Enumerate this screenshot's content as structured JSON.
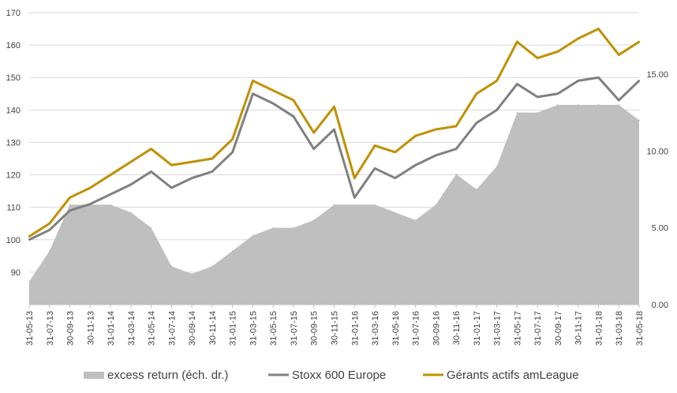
{
  "chart_data": {
    "type": "line",
    "title": "",
    "xlabel": "",
    "ylabel": "",
    "ylim": [
      80,
      170
    ],
    "y2lim": [
      0,
      19
    ],
    "yticks": [
      90,
      100,
      110,
      120,
      130,
      140,
      150,
      160,
      170
    ],
    "y2ticks": [
      "0.00",
      "5.00",
      "10.00",
      "15.00"
    ],
    "y2tick_values": [
      0,
      5,
      10,
      15
    ],
    "grid": true,
    "legend_position": "bottom",
    "x": [
      "31-05-13",
      "31-07-13",
      "30-09-13",
      "30-11-13",
      "31-01-14",
      "31-03-14",
      "31-05-14",
      "31-07-14",
      "30-09-14",
      "30-11-14",
      "31-01-15",
      "31-03-15",
      "31-05-15",
      "31-07-15",
      "30-09-15",
      "30-11-15",
      "31-01-16",
      "31-03-16",
      "31-05-16",
      "31-07-16",
      "30-09-16",
      "30-11-16",
      "31-01-17",
      "31-03-17",
      "31-05-17",
      "31-07-17",
      "30-09-17",
      "30-11-17",
      "31-01-18",
      "31-03-18",
      "31-05-18"
    ],
    "x_labels": [
      "31-05-13",
      "31-07-13",
      "30-09-13",
      "30-11-13",
      "31-01-14",
      "31-03-14",
      "31-05-14",
      "31-07-14",
      "30-09-14",
      "30-11-14",
      "31-01-15",
      "31-03-15",
      "31-05-15",
      "31-07-15",
      "30-09-15",
      "30-11-15",
      "31-01-16",
      "31-03-16",
      "31-05-16",
      "31-07-16",
      "30-09-16",
      "30-11-16",
      "31-01-17",
      "31-03-17",
      "31-05-17",
      "31-07-17",
      "30-09-17",
      "30-11-17",
      "31-01-18",
      "31-03-18",
      "31-05-18"
    ],
    "series": [
      {
        "name": "excess return (éch. dr.)",
        "kind": "area",
        "axis": "right",
        "color": "#bfbfbf",
        "values": [
          1.5,
          3.5,
          6.5,
          6.5,
          6.5,
          6.0,
          5.0,
          2.5,
          2.0,
          2.5,
          3.5,
          4.5,
          5.0,
          5.0,
          5.5,
          6.5,
          6.5,
          6.5,
          6.0,
          5.5,
          6.5,
          8.5,
          7.5,
          9.0,
          12.5,
          12.5,
          13.0,
          13.0,
          13.0,
          13.0,
          12.0
        ]
      },
      {
        "name": "Stoxx 600 Europe",
        "kind": "line",
        "axis": "left",
        "color": "#808080",
        "values": [
          100,
          103,
          109,
          111,
          114,
          117,
          121,
          116,
          119,
          121,
          127,
          145,
          142,
          138,
          128,
          134,
          113,
          122,
          119,
          123,
          126,
          128,
          136,
          140,
          148,
          144,
          145,
          149,
          150,
          143,
          149
        ]
      },
      {
        "name": "Gérants actifs amLeague",
        "kind": "line",
        "axis": "left",
        "color": "#c09000",
        "values": [
          101,
          105,
          113,
          116,
          120,
          124,
          128,
          123,
          124,
          125,
          131,
          149,
          146,
          143,
          133,
          141,
          119,
          129,
          127,
          132,
          134,
          135,
          145,
          149,
          161,
          156,
          158,
          162,
          165,
          157,
          161
        ]
      }
    ]
  }
}
